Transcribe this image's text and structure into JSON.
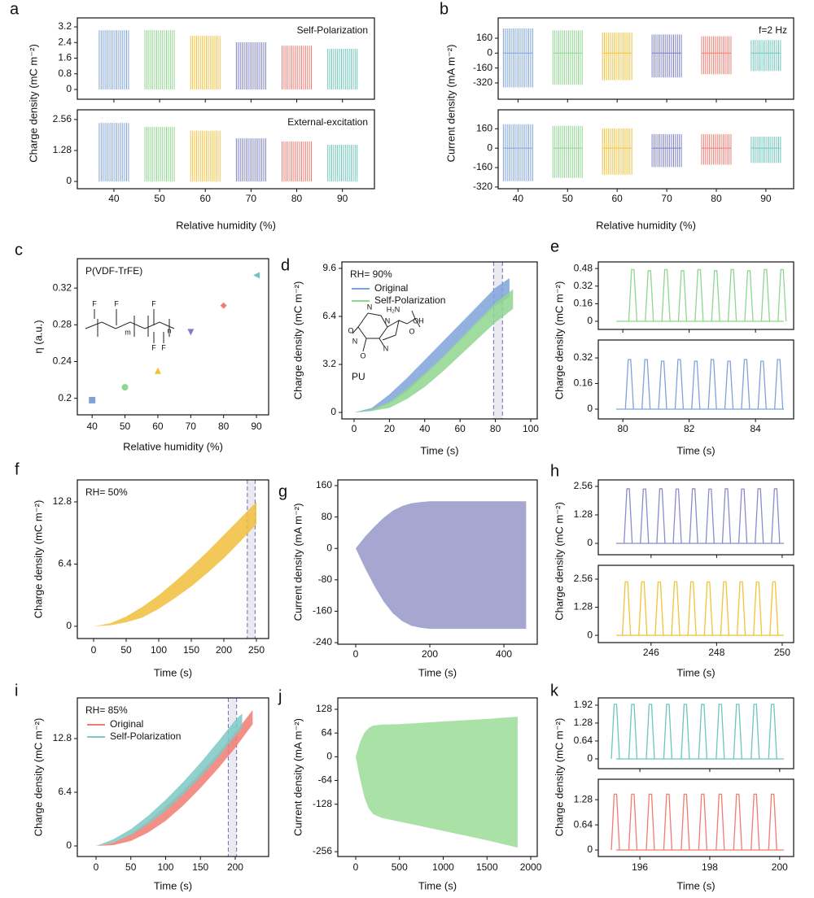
{
  "chart_data": [
    {
      "type": "burst",
      "label": "a",
      "xlabel": "Relative humidity (%)",
      "ylabel": "Charge density (mC m⁻²)",
      "x": [
        40,
        50,
        60,
        70,
        80,
        90
      ],
      "xlim": [
        32,
        97
      ],
      "xticks": [
        40,
        50,
        60,
        70,
        80,
        90
      ],
      "colors": [
        "#7fa3d9",
        "#8fd68f",
        "#f2c23c",
        "#7e7fc2",
        "#f07c72",
        "#6cc7bd"
      ],
      "subplots": [
        {
          "annotation": "Self-Polarization",
          "annotation_corner": "upper right",
          "ylim": [
            -0.5,
            3.66
          ],
          "yticks": [
            0,
            0.8,
            1.6,
            2.4,
            3.2
          ],
          "values": [
            3.03,
            3.03,
            2.74,
            2.41,
            2.24,
            2.08
          ]
        },
        {
          "annotation": "External-excitation",
          "annotation_corner": "upper right",
          "ylim": [
            -0.3,
            2.96
          ],
          "yticks": [
            0,
            1.28,
            2.56
          ],
          "values": [
            2.42,
            2.26,
            2.09,
            1.78,
            1.65,
            1.52
          ]
        }
      ]
    },
    {
      "type": "burst",
      "label": "b",
      "xlabel": "Relative humidity (%)",
      "ylabel": "Current density (mA m⁻²)",
      "x": [
        40,
        50,
        60,
        70,
        80,
        90
      ],
      "xlim": [
        36,
        95.6
      ],
      "xticks": [
        40,
        50,
        60,
        70,
        80,
        90
      ],
      "colors": [
        "#7fa3d9",
        "#8fd68f",
        "#f2c23c",
        "#7e7fc2",
        "#f07c72",
        "#6cc7bd"
      ],
      "subplots": [
        {
          "annotation": "f=2 Hz",
          "annotation_corner": "upper right",
          "ylim": [
            -495,
            378
          ],
          "yticks": [
            -320,
            -160,
            0,
            160
          ],
          "max_values": [
            265,
            245,
            220,
            200,
            180,
            140
          ],
          "min_values": [
            -367,
            -340,
            -290,
            -262,
            -227,
            -192
          ]
        },
        {
          "ylim": [
            -334,
            316
          ],
          "yticks": [
            -320,
            -160,
            0,
            160
          ],
          "max_values": [
            197,
            184,
            163,
            116,
            116,
            95
          ],
          "min_values": [
            -272,
            -245,
            -218,
            -156,
            -136,
            -122
          ]
        }
      ]
    },
    {
      "type": "scatter",
      "label": "c",
      "xlabel": "Relative humidity (%)",
      "ylabel": "η (a.u.)",
      "annotation": "P(VDF-TrFE)",
      "annotation_corner": "upper left",
      "structure_labels": [
        "F",
        "F",
        "F",
        "F",
        "F",
        "m",
        "n"
      ],
      "x": [
        40,
        50,
        60,
        70,
        80,
        90
      ],
      "values": [
        0.198,
        0.212,
        0.23,
        0.272,
        0.301,
        0.334
      ],
      "colors": [
        "#7fa3d9",
        "#8fd68f",
        "#f2c23c",
        "#7e7fc2",
        "#f07c72",
        "#6cc7bd"
      ],
      "markers": [
        "square",
        "circle",
        "triangle-up",
        "triangle-down",
        "diamond",
        "triangle-left"
      ],
      "xlim": [
        35.5,
        93.7
      ],
      "ylim": [
        0.182,
        0.352
      ],
      "xticks": [
        40,
        50,
        60,
        70,
        80,
        90
      ],
      "yticks": [
        0.2,
        0.24,
        0.28,
        0.32
      ]
    },
    {
      "type": "band",
      "label": "d",
      "xlabel": "Time (s)",
      "ylabel": "Charge density (mC m⁻²)",
      "annotation": "RH= 90%",
      "annotation_corner": "upper left",
      "legend": "upper left",
      "inset_label": "PU",
      "structure_labels": [
        "O",
        "N",
        "N",
        "N",
        "O",
        "N",
        "H₂N",
        "OH",
        "O"
      ],
      "xlim": [
        -6.9,
        103.7
      ],
      "ylim": [
        -0.43,
        10.03
      ],
      "xticks": [
        0,
        20,
        40,
        60,
        80,
        100
      ],
      "yticks": [
        0,
        3.2,
        6.4,
        9.6
      ],
      "highlight": [
        79,
        84
      ],
      "series": [
        {
          "name": "Original",
          "color": "#7fa3d9",
          "x": [
            0,
            10,
            20,
            30,
            40,
            50,
            60,
            70,
            80,
            88
          ],
          "upper": [
            0,
            0.3,
            1.2,
            2.3,
            3.5,
            4.7,
            5.9,
            7.1,
            8.3,
            8.95
          ],
          "lower": [
            0,
            0.1,
            0.6,
            1.4,
            2.5,
            3.6,
            4.8,
            6.0,
            7.1,
            7.7
          ]
        },
        {
          "name": "Self-Polarization",
          "color": "#8fd68f",
          "x": [
            0,
            10,
            20,
            30,
            40,
            50,
            60,
            70,
            80,
            90
          ],
          "upper": [
            0,
            0.2,
            0.7,
            1.6,
            2.6,
            3.7,
            4.9,
            6.1,
            7.3,
            8.2
          ],
          "lower": [
            0,
            0.1,
            0.3,
            0.9,
            1.7,
            2.7,
            3.8,
            4.9,
            6.0,
            6.9
          ]
        }
      ]
    },
    {
      "type": "pulses",
      "label": "e",
      "xlabel": "Time (s)",
      "ylabel": "Charge density (mC m⁻²)",
      "xlim": [
        79.26,
        85.15
      ],
      "xticks": [
        80,
        82,
        84
      ],
      "subplots": [
        {
          "color": "#8fd68f",
          "ylim": [
            -0.074,
            0.54
          ],
          "yticks": [
            0,
            0.16,
            0.32,
            0.48
          ],
          "peaks_x": [
            80.3,
            80.8,
            81.3,
            81.8,
            82.3,
            82.8,
            83.3,
            83.8,
            84.3,
            84.8
          ],
          "values": [
            0.47,
            0.46,
            0.47,
            0.46,
            0.47,
            0.46,
            0.47,
            0.46,
            0.47,
            0.47
          ]
        },
        {
          "color": "#7fa3d9",
          "ylim": [
            -0.061,
            0.432
          ],
          "yticks": [
            0,
            0.16,
            0.32
          ],
          "peaks_x": [
            80.2,
            80.7,
            81.2,
            81.7,
            82.2,
            82.7,
            83.2,
            83.7,
            84.2,
            84.7
          ],
          "values": [
            0.31,
            0.31,
            0.3,
            0.31,
            0.3,
            0.31,
            0.3,
            0.31,
            0.3,
            0.31
          ]
        }
      ]
    },
    {
      "type": "band",
      "label": "f",
      "xlabel": "Time (s)",
      "ylabel": "Charge density (mC m⁻²)",
      "annotation": "RH= 50%",
      "annotation_corner": "upper left",
      "xlim": [
        -25,
        268.75
      ],
      "ylim": [
        -1.26,
        15.06
      ],
      "xticks": [
        0,
        50,
        100,
        150,
        200,
        250
      ],
      "yticks": [
        0,
        6.4,
        12.8
      ],
      "highlight": [
        236,
        248
      ],
      "series": [
        {
          "color": "#f0bf3c",
          "x": [
            0,
            25,
            50,
            75,
            100,
            125,
            150,
            175,
            200,
            225,
            250
          ],
          "upper": [
            0,
            0.3,
            1.0,
            2.0,
            3.2,
            4.6,
            6.1,
            7.7,
            9.4,
            11.1,
            12.8
          ],
          "lower": [
            0,
            0.1,
            0.4,
            0.9,
            1.8,
            2.9,
            4.1,
            5.5,
            7.0,
            8.7,
            10.5
          ]
        }
      ]
    },
    {
      "type": "band",
      "label": "g",
      "xlabel": "Time (s)",
      "ylabel": "Current density (mA m⁻²)",
      "xlim": [
        -48.4,
        490
      ],
      "ylim": [
        -244,
        174.5
      ],
      "xticks": [
        0,
        200,
        400
      ],
      "yticks": [
        -240,
        -160,
        -80,
        0,
        80,
        160
      ],
      "series": [
        {
          "color": "#9598c8",
          "x": [
            0,
            25,
            50,
            75,
            100,
            125,
            150,
            175,
            200,
            300,
            460
          ],
          "upper": [
            0,
            30,
            55,
            78,
            96,
            108,
            115,
            118,
            120,
            120,
            120
          ],
          "lower": [
            0,
            -50,
            -95,
            -135,
            -165,
            -185,
            -197,
            -202,
            -205,
            -205,
            -205
          ]
        }
      ]
    },
    {
      "type": "pulses",
      "label": "h",
      "xlabel": "Time (s)",
      "ylabel": "Charge density (mC m⁻²)",
      "xlim": [
        244.39,
        250.35
      ],
      "xticks": [
        246,
        248,
        250
      ],
      "subplots": [
        {
          "color": "#8a8ccc",
          "ylim": [
            -0.51,
            2.85
          ],
          "yticks": [
            0,
            1.28,
            2.56
          ],
          "peaks_x": [
            245.3,
            245.8,
            246.3,
            246.8,
            247.3,
            247.8,
            248.3,
            248.8,
            249.3,
            249.8
          ],
          "values": [
            2.45,
            2.44,
            2.45,
            2.44,
            2.45,
            2.44,
            2.45,
            2.44,
            2.45,
            2.45
          ]
        },
        {
          "color": "#f2c23c",
          "ylim": [
            -0.33,
            3.19
          ],
          "yticks": [
            0,
            1.28,
            2.56
          ],
          "peaks_x": [
            245.25,
            245.75,
            246.25,
            246.75,
            247.25,
            247.75,
            248.25,
            248.75,
            249.25,
            249.75
          ],
          "values": [
            2.44,
            2.44,
            2.43,
            2.44,
            2.44,
            2.43,
            2.44,
            2.44,
            2.43,
            2.44
          ]
        }
      ]
    },
    {
      "type": "band",
      "label": "i",
      "xlabel": "Time (s)",
      "ylabel": "Charge density (mC m⁻²)",
      "annotation": "RH= 85%",
      "annotation_corner": "upper left",
      "legend": "upper left",
      "xlim": [
        -26.9,
        248
      ],
      "ylim": [
        -1.26,
        17.65
      ],
      "xticks": [
        0,
        50,
        100,
        150,
        200
      ],
      "yticks": [
        0,
        6.4,
        12.8
      ],
      "highlight": [
        190,
        202
      ],
      "series": [
        {
          "name": "Original",
          "color": "#f07c72",
          "x": [
            0,
            25,
            50,
            75,
            100,
            125,
            150,
            175,
            200,
            225
          ],
          "upper": [
            0,
            0.4,
            1.4,
            2.9,
            4.7,
            6.6,
            8.7,
            11.0,
            13.5,
            16.2
          ],
          "lower": [
            0,
            0.1,
            0.6,
            1.6,
            3.0,
            4.8,
            6.9,
            9.2,
            11.7,
            14.5
          ]
        },
        {
          "name": "Self-Polarization",
          "color": "#7ec9c4",
          "x": [
            0,
            25,
            50,
            75,
            100,
            125,
            150,
            175,
            200,
            210
          ],
          "upper": [
            0,
            0.8,
            2.0,
            3.6,
            5.5,
            7.6,
            9.9,
            12.4,
            15.0,
            15.8
          ],
          "lower": [
            0,
            0.4,
            1.3,
            2.6,
            4.2,
            6.1,
            8.2,
            10.5,
            13.1,
            14.1
          ]
        }
      ]
    },
    {
      "type": "band",
      "label": "j",
      "xlabel": "Time (s)",
      "ylabel": "Current density (mA m⁻²)",
      "xlim": [
        -204.6,
        2074
      ],
      "ylim": [
        -269,
        158.7
      ],
      "xticks": [
        0,
        500,
        1000,
        1500,
        2000
      ],
      "yticks": [
        -256,
        -128,
        -64,
        0,
        64,
        128
      ],
      "series": [
        {
          "color": "#9adc98",
          "x": [
            0,
            50,
            100,
            150,
            200,
            300,
            500,
            1000,
            1500,
            1850
          ],
          "upper": [
            0,
            40,
            65,
            78,
            84,
            87,
            88,
            95,
            102,
            108
          ],
          "lower": [
            0,
            -60,
            -110,
            -140,
            -155,
            -165,
            -175,
            -200,
            -225,
            -245
          ]
        }
      ]
    },
    {
      "type": "pulses",
      "label": "k",
      "xlabel": "Time (s)",
      "ylabel": "Charge density (mC m⁻²)",
      "xlim": [
        194.81,
        200.4
      ],
      "xticks": [
        196,
        198,
        200
      ],
      "subplots": [
        {
          "color": "#6cc7bd",
          "ylim": [
            -0.35,
            2.18
          ],
          "yticks": [
            0,
            0.64,
            1.28,
            1.92
          ],
          "peaks_x": [
            195.3,
            195.8,
            196.3,
            196.8,
            197.3,
            197.8,
            198.3,
            198.8,
            199.3,
            199.8
          ],
          "values": [
            1.95,
            1.95,
            1.95,
            1.95,
            1.95,
            1.95,
            1.95,
            1.95,
            1.95,
            1.95
          ]
        },
        {
          "color": "#f07c72",
          "ylim": [
            -0.165,
            1.8
          ],
          "yticks": [
            0,
            0.64,
            1.28
          ],
          "peaks_x": [
            195.3,
            195.8,
            196.3,
            196.8,
            197.3,
            197.8,
            198.3,
            198.8,
            199.3,
            199.8
          ],
          "values": [
            1.42,
            1.42,
            1.42,
            1.42,
            1.42,
            1.42,
            1.42,
            1.42,
            1.42,
            1.42
          ]
        }
      ]
    }
  ]
}
